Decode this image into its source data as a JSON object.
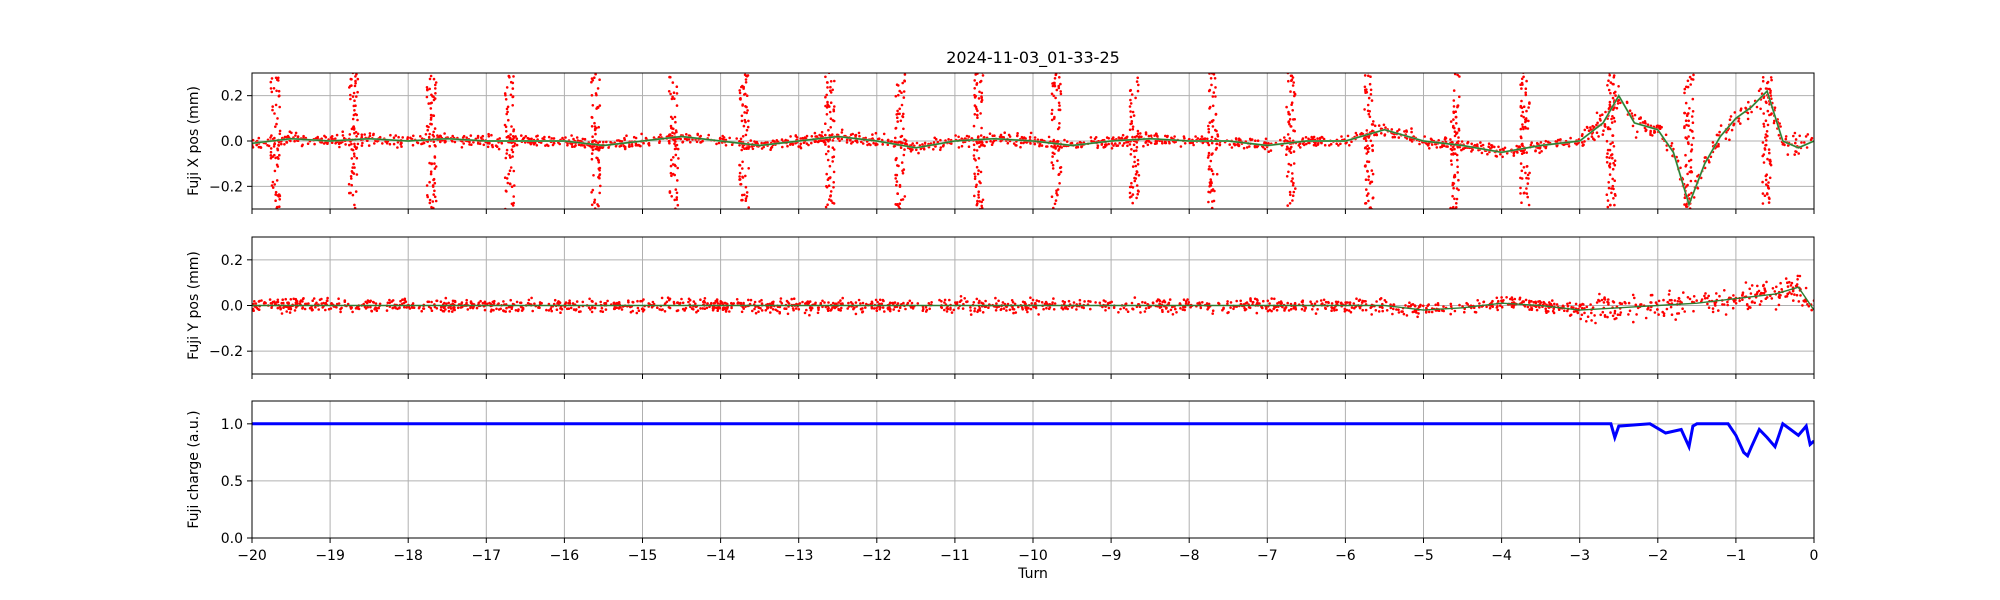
{
  "title": "2024-11-03_01-33-25",
  "chart_data": [
    {
      "type": "scatter",
      "ylabel": "Fuji X pos (mm)",
      "xlim": [
        -20,
        0
      ],
      "ylim": [
        -0.3,
        0.3
      ],
      "yticks": [
        -0.2,
        0.0,
        0.2
      ],
      "ytick_labels": [
        "−0.2",
        "0.0",
        "0.2"
      ],
      "grid": true,
      "colors": {
        "points": "#ff0000",
        "trend": "#2e7d32",
        "trend_light": "#8fd19e"
      },
      "series": [
        {
          "kind": "scatter",
          "x": [
            -20,
            -19.5,
            -19,
            -18.5,
            -18,
            -17.5,
            -17,
            -16.5,
            -16,
            -15.5,
            -15,
            -14.5,
            -14,
            -13.5,
            -13,
            -12.5,
            -12,
            -11.5,
            -11,
            -10.5,
            -10,
            -9.5,
            -9,
            -8.5,
            -8,
            -7.5,
            -7,
            -6.5,
            -6,
            -5.5,
            -5,
            -4.5,
            -4,
            -3.5,
            -3,
            -2.7,
            -2.5,
            -2.3,
            -2,
            -1.8,
            -1.6,
            -1.4,
            -1.2,
            -1,
            -0.8,
            -0.6,
            -0.4,
            -0.2,
            0
          ],
          "y": [
            -0.01,
            0.01,
            0.0,
            0.01,
            0.0,
            0.01,
            0.0,
            0.0,
            0.0,
            -0.02,
            0.0,
            0.02,
            0.0,
            -0.02,
            0.0,
            0.02,
            0.0,
            -0.03,
            0.0,
            0.01,
            0.0,
            -0.02,
            0.0,
            0.01,
            0.0,
            0.0,
            -0.02,
            0.0,
            0.0,
            0.05,
            0.0,
            -0.02,
            -0.05,
            -0.02,
            0.0,
            0.08,
            0.2,
            0.08,
            0.05,
            -0.05,
            -0.28,
            -0.1,
            0.02,
            0.1,
            0.15,
            0.22,
            0.0,
            -0.03,
            0.0
          ]
        }
      ],
      "outlier_turns": [
        -19.7,
        -18.7,
        -17.7,
        -16.7,
        -15.6,
        -14.6,
        -13.7,
        -12.6,
        -11.7,
        -10.7,
        -9.7,
        -8.7,
        -7.7,
        -6.7,
        -5.7,
        -4.6,
        -3.7,
        -2.6,
        -1.6,
        -0.6
      ]
    },
    {
      "type": "scatter",
      "ylabel": "Fuji Y pos (mm)",
      "xlim": [
        -20,
        0
      ],
      "ylim": [
        -0.3,
        0.3
      ],
      "yticks": [
        -0.2,
        0.0,
        0.2
      ],
      "ytick_labels": [
        "−0.2",
        "0.0",
        "0.2"
      ],
      "grid": true,
      "colors": {
        "points": "#ff0000",
        "trend": "#2e7d32"
      },
      "series": [
        {
          "kind": "scatter",
          "x": [
            -20,
            -19,
            -18,
            -17,
            -16,
            -15,
            -14,
            -13,
            -12,
            -11,
            -10,
            -9,
            -8,
            -7,
            -6,
            -5.5,
            -5,
            -4.5,
            -4,
            -3.5,
            -3,
            -2.5,
            -2,
            -1.5,
            -1,
            -0.5,
            -0.2,
            0
          ],
          "y": [
            0.0,
            0.0,
            0.0,
            0.0,
            0.0,
            0.0,
            0.0,
            0.0,
            0.0,
            0.0,
            0.0,
            0.0,
            0.0,
            0.0,
            0.0,
            0.0,
            -0.02,
            -0.01,
            0.01,
            0.0,
            -0.02,
            -0.01,
            0.0,
            0.01,
            0.03,
            0.05,
            0.08,
            -0.02
          ]
        }
      ]
    },
    {
      "type": "line",
      "ylabel": "Fuji charge (a.u.)",
      "xlabel": "Turn",
      "xlim": [
        -20,
        0
      ],
      "ylim": [
        0.0,
        1.2
      ],
      "yticks": [
        0.0,
        0.5,
        1.0
      ],
      "ytick_labels": [
        "0.0",
        "0.5",
        "1.0"
      ],
      "xticks": [
        -20,
        -19,
        -18,
        -17,
        -16,
        -15,
        -14,
        -13,
        -12,
        -11,
        -10,
        -9,
        -8,
        -7,
        -6,
        -5,
        -4,
        -3,
        -2,
        -1,
        0
      ],
      "xtick_labels": [
        "−20",
        "−19",
        "−18",
        "−17",
        "−16",
        "−15",
        "−14",
        "−13",
        "−12",
        "−11",
        "−10",
        "−9",
        "−8",
        "−7",
        "−6",
        "−5",
        "−4",
        "−3",
        "−2",
        "−1",
        "0"
      ],
      "grid": true,
      "colors": {
        "line": "#0000ff"
      },
      "series": [
        {
          "kind": "line",
          "x": [
            -20,
            -3,
            -2.6,
            -2.55,
            -2.5,
            -2.1,
            -1.9,
            -1.7,
            -1.6,
            -1.55,
            -1.5,
            -1.1,
            -1.0,
            -0.9,
            -0.85,
            -0.8,
            -0.7,
            -0.6,
            -0.5,
            -0.45,
            -0.4,
            -0.3,
            -0.2,
            -0.1,
            -0.05,
            0
          ],
          "y": [
            1.0,
            1.0,
            1.0,
            0.88,
            0.98,
            1.0,
            0.92,
            0.95,
            0.8,
            0.98,
            1.0,
            1.0,
            0.9,
            0.75,
            0.72,
            0.8,
            0.95,
            0.88,
            0.8,
            0.9,
            1.0,
            0.95,
            0.9,
            0.98,
            0.82,
            0.85
          ]
        }
      ]
    }
  ]
}
